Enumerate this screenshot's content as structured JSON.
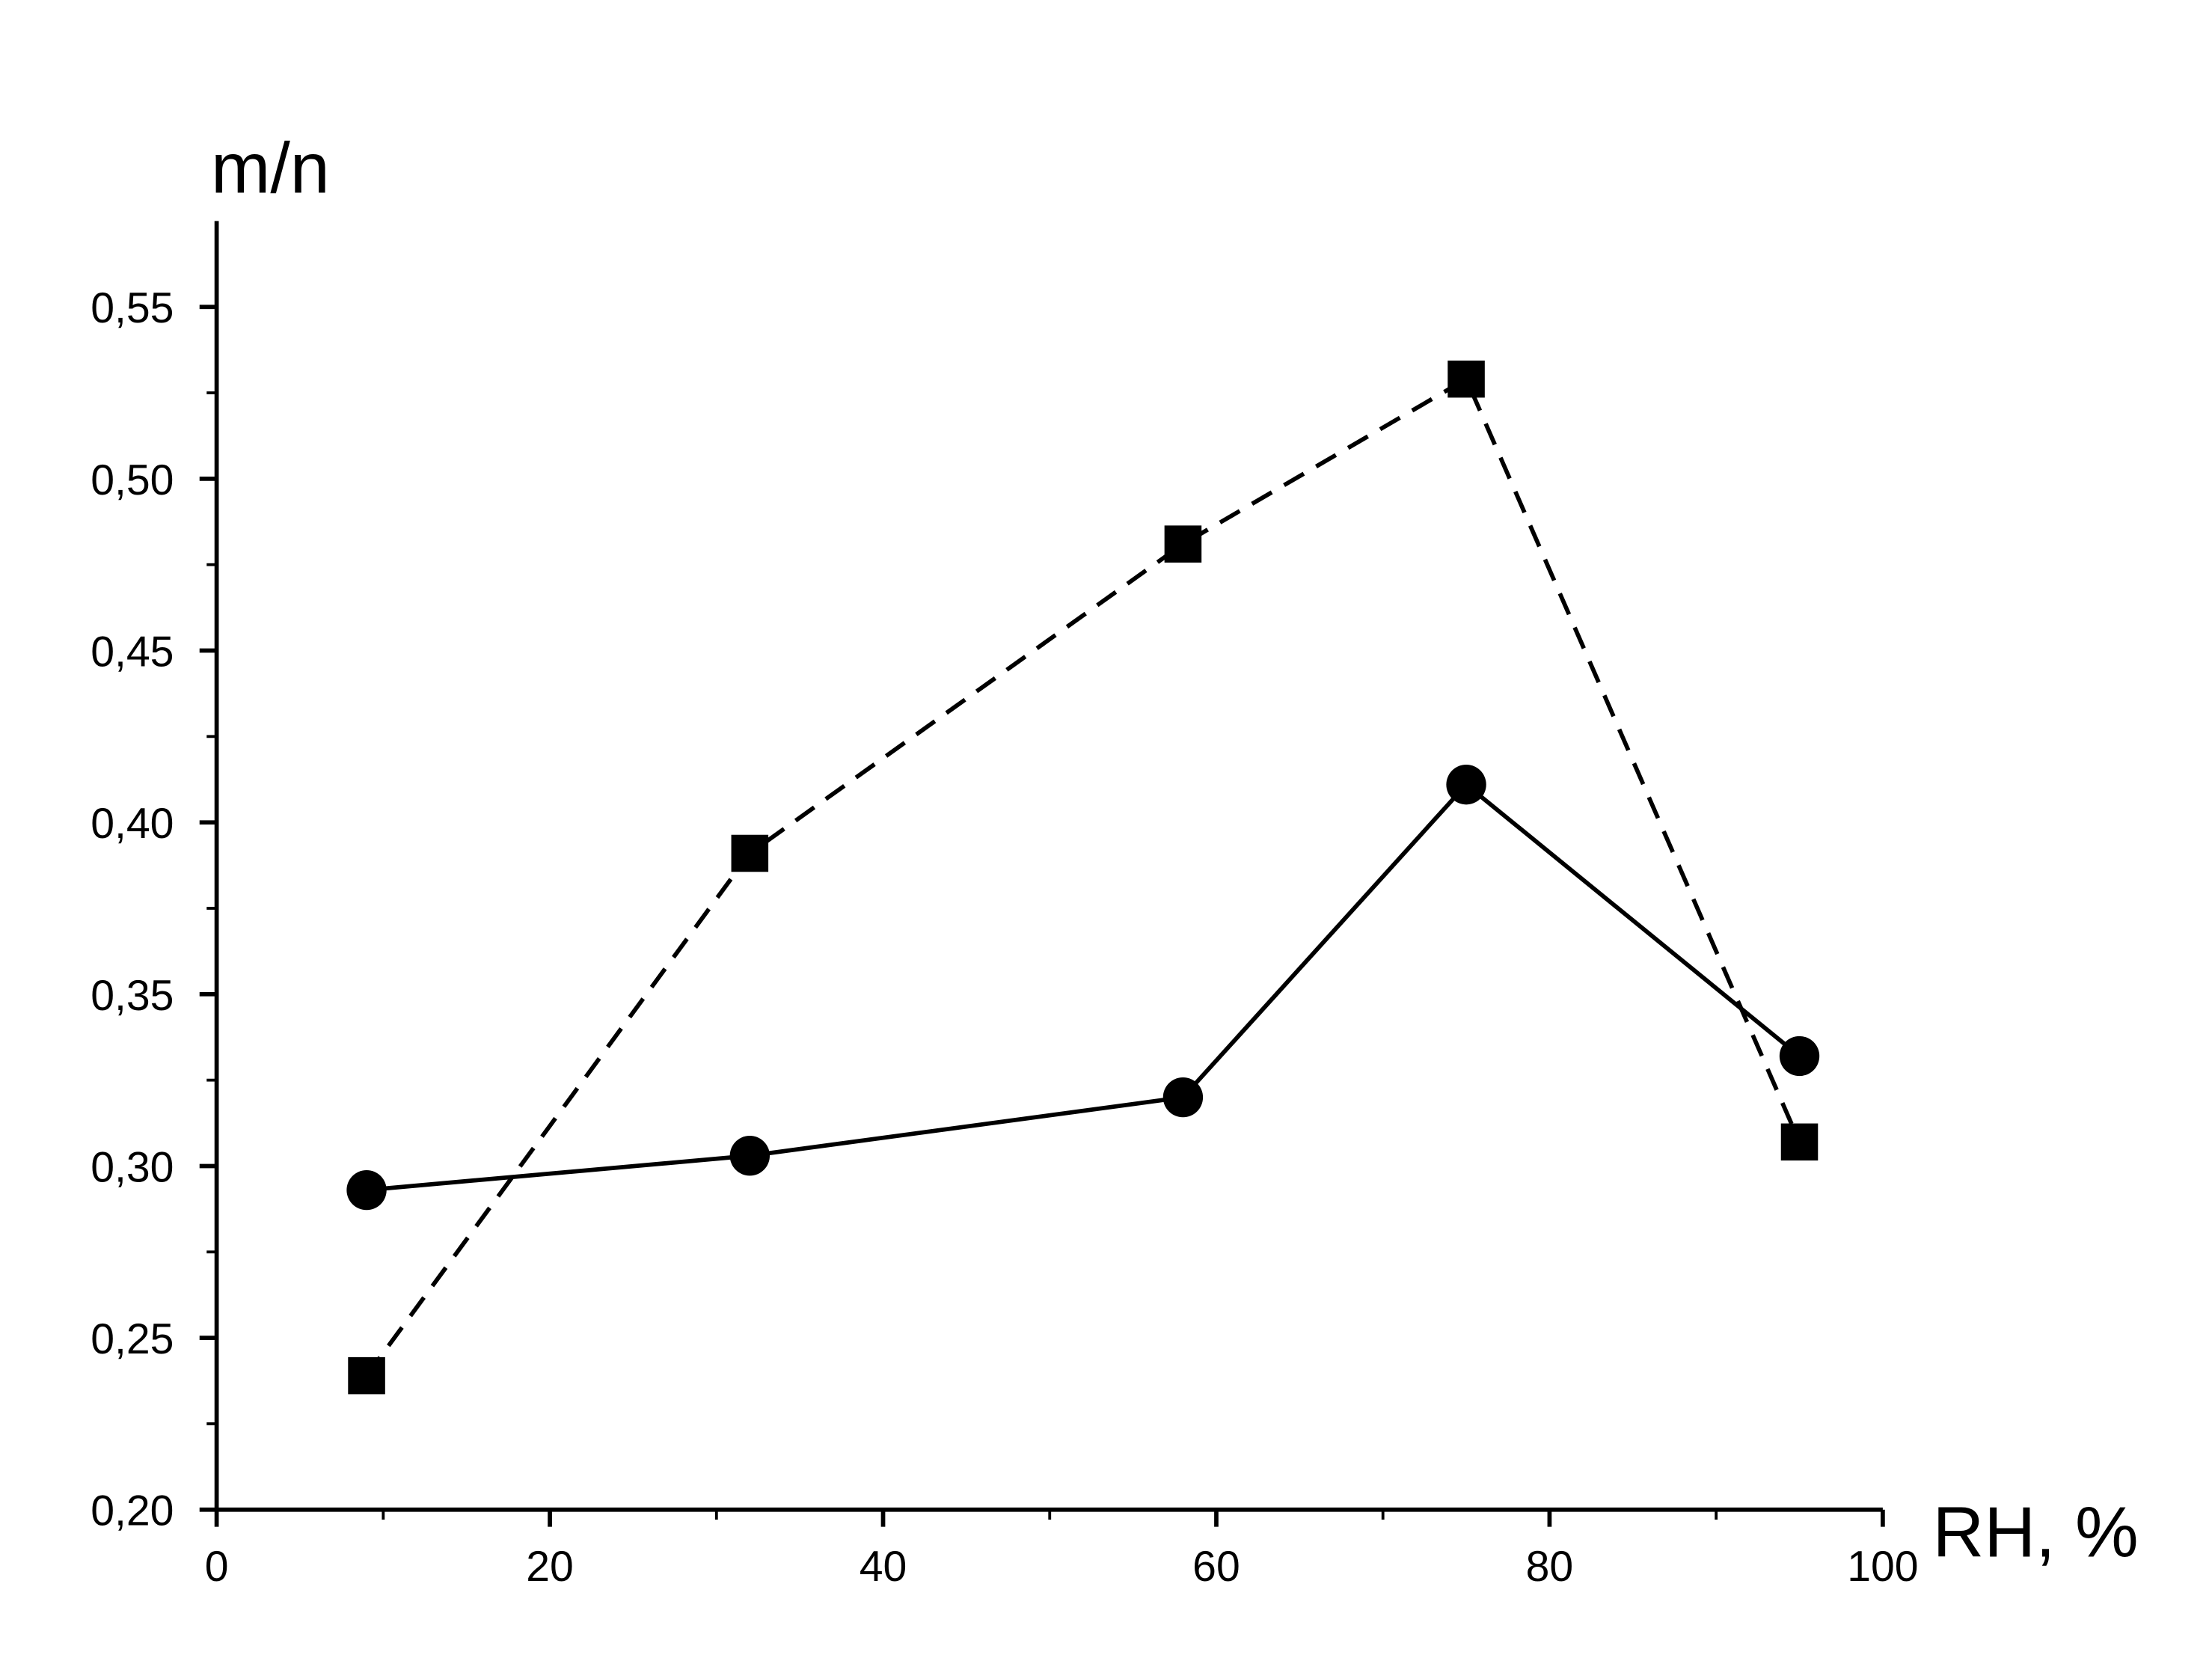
{
  "chart_data": {
    "type": "line",
    "xlabel": "RH, %",
    "ylabel": "m/n",
    "x": [
      9,
      32,
      58,
      75,
      95
    ],
    "series": [
      {
        "color": "#000000",
        "marker": "circle",
        "dash": "solid",
        "values": [
          0.293,
          0.303,
          0.32,
          0.411,
          0.332
        ]
      },
      {
        "color": "#000000",
        "marker": "square",
        "dash": "dashed",
        "values": [
          0.239,
          0.391,
          0.481,
          0.529,
          0.307
        ]
      }
    ],
    "xlim": [
      0,
      100
    ],
    "xticks": [
      0,
      20,
      40,
      60,
      80,
      100
    ],
    "ylim": [
      0.2,
      0.575
    ],
    "yticks": [
      {
        "value": 0.2,
        "label": "0,20"
      },
      {
        "value": 0.25,
        "label": "0,25"
      },
      {
        "value": 0.3,
        "label": "0,30"
      },
      {
        "value": 0.35,
        "label": "0,35"
      },
      {
        "value": 0.4,
        "label": "0,40"
      },
      {
        "value": 0.45,
        "label": "0,45"
      },
      {
        "value": 0.5,
        "label": "0,50"
      },
      {
        "value": 0.55,
        "label": "0,55"
      }
    ],
    "grid": false
  }
}
